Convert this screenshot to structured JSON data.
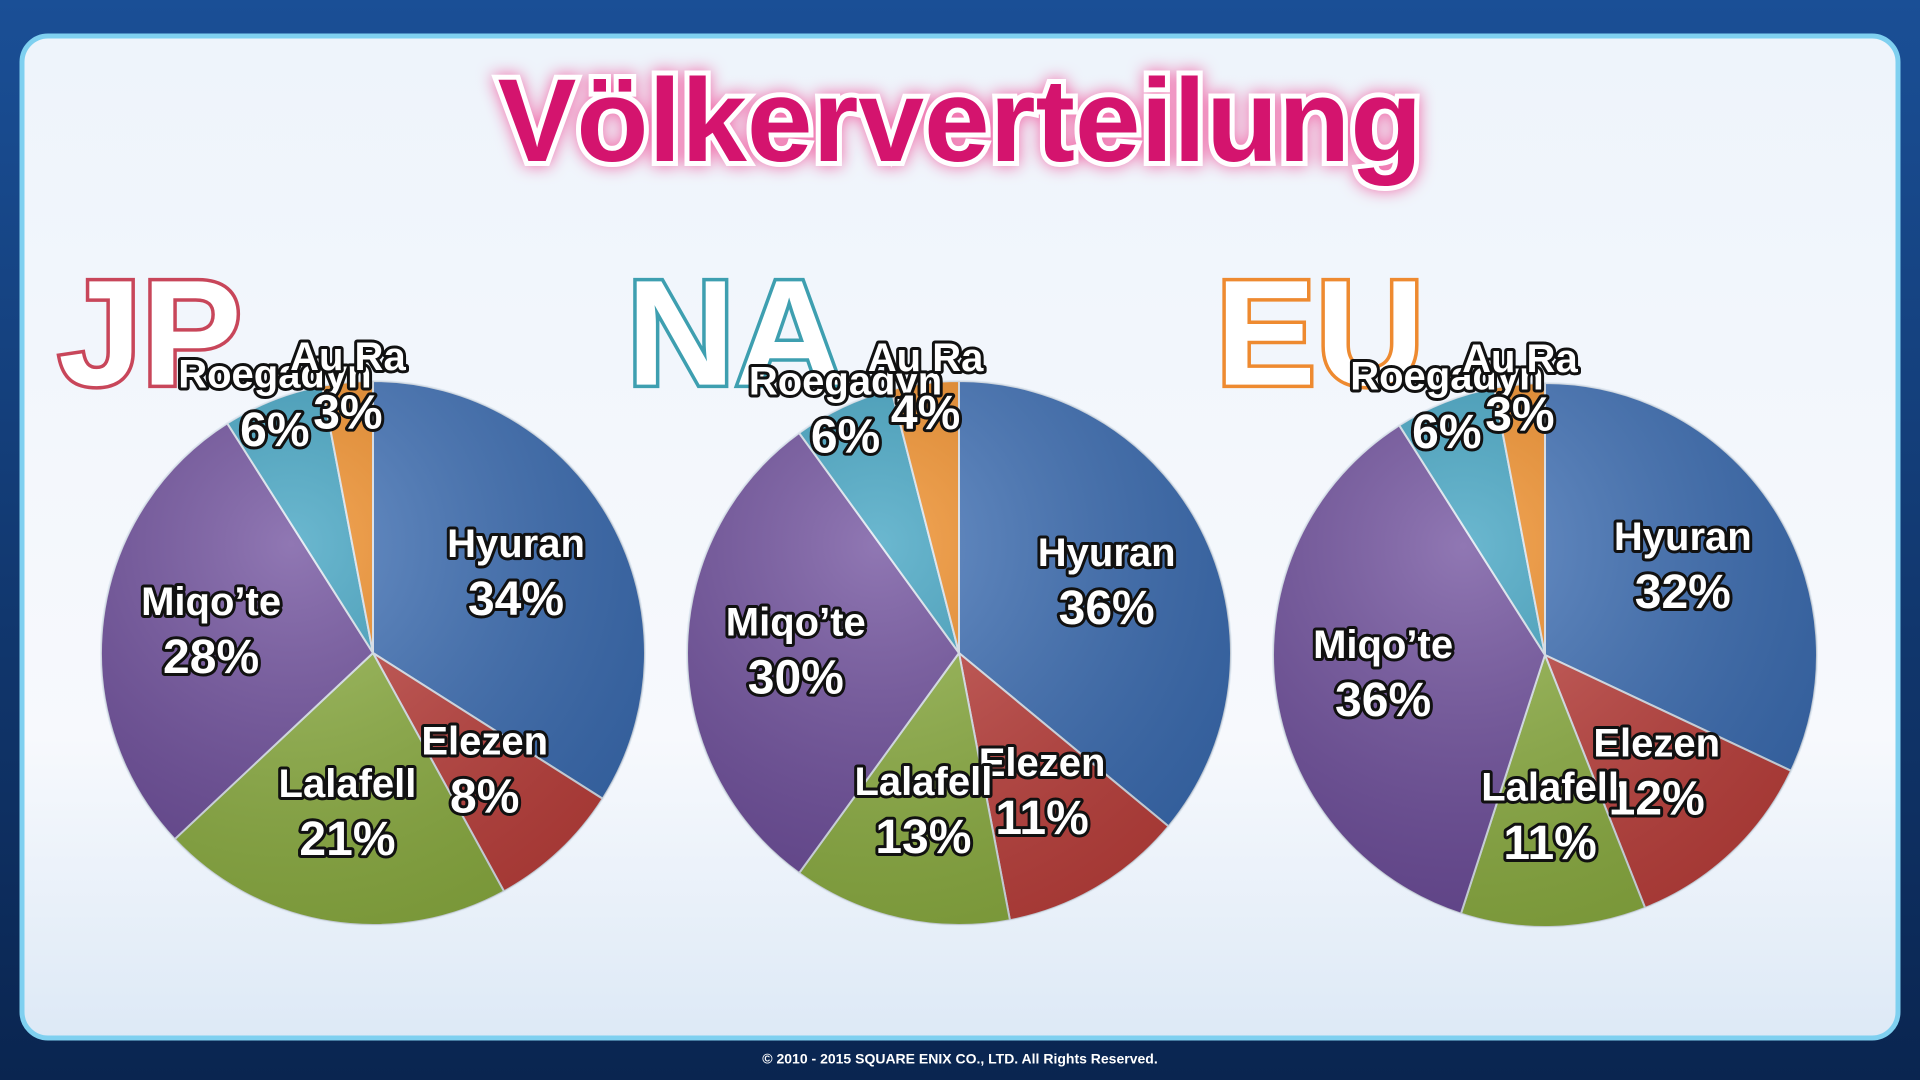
{
  "title": "Völkerverteilung",
  "footer": "© 2010 - 2015 SQUARE ENIX CO., LTD. All Rights Reserved.",
  "chart_data": [
    {
      "type": "pie",
      "title": "JP",
      "title_color": "#c8465a",
      "categories": [
        "Hyuran",
        "Elezen",
        "Lalafell",
        "Miqo’te",
        "Roegadyn",
        "Au Ra"
      ],
      "values": [
        34,
        8,
        21,
        28,
        6,
        3
      ],
      "value_labels": [
        "34%",
        "8%",
        "21%",
        "28%",
        "6%",
        "3%"
      ],
      "colors": [
        "#3a6db5",
        "#c0403c",
        "#8db040",
        "#6b4a9a",
        "#3aa0c0",
        "#f08a20"
      ]
    },
    {
      "type": "pie",
      "title": "NA",
      "title_color": "#3e9fb0",
      "categories": [
        "Hyuran",
        "Elezen",
        "Lalafell",
        "Miqo’te",
        "Roegadyn",
        "Au Ra"
      ],
      "values": [
        36,
        11,
        13,
        30,
        6,
        4
      ],
      "value_labels": [
        "36%",
        "11%",
        "13%",
        "30%",
        "6%",
        "4%"
      ],
      "colors": [
        "#3a6db5",
        "#c0403c",
        "#8db040",
        "#6b4a9a",
        "#3aa0c0",
        "#f08a20"
      ]
    },
    {
      "type": "pie",
      "title": "EU",
      "title_color": "#ee8a30",
      "categories": [
        "Hyuran",
        "Elezen",
        "Lalafell",
        "Miqo’te",
        "Roegadyn",
        "Au Ra"
      ],
      "values": [
        32,
        12,
        11,
        36,
        6,
        3
      ],
      "value_labels": [
        "32%",
        "12%",
        "11%",
        "36%",
        "6%",
        "3%"
      ],
      "colors": [
        "#3a6db5",
        "#c0403c",
        "#8db040",
        "#6b4a9a",
        "#3aa0c0",
        "#f08a20"
      ]
    }
  ]
}
